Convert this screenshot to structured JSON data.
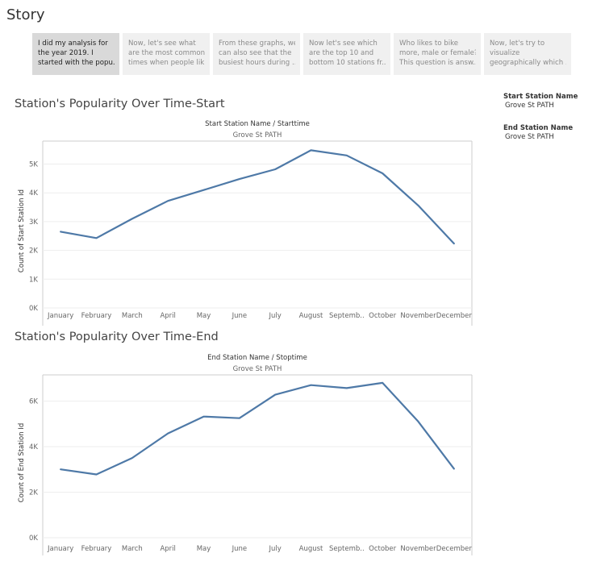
{
  "story": {
    "title": "Story",
    "points": [
      {
        "lines": [
          "I did my analysis for",
          "the year 2019. I",
          "started with the popu.."
        ],
        "active": true
      },
      {
        "lines": [
          "Now, let's see what",
          "are the most common",
          "times when people lik.."
        ],
        "active": false
      },
      {
        "lines": [
          "From these graphs, we",
          "can also see that the",
          "busiest hours during .."
        ],
        "active": false
      },
      {
        "lines": [
          "Now let's see which",
          "are the top 10 and",
          "bottom 10 stations fr.."
        ],
        "active": false
      },
      {
        "lines": [
          "Who likes to bike",
          "more, male or female?",
          "This question is answ.."
        ],
        "active": false
      },
      {
        "lines": [
          "Now, let's try to",
          "visualize",
          "geographically which .."
        ],
        "active": false
      }
    ]
  },
  "filters": [
    {
      "label": "Start Station Name",
      "value": "Grove St PATH"
    },
    {
      "label": "End Station Name",
      "value": "Grove St PATH"
    }
  ],
  "colors": {
    "line": "#4e79a7",
    "grid": "#eeeeee",
    "axis": "#cccccc",
    "text": "#666666"
  },
  "chart_data": [
    {
      "type": "line",
      "title": "Station's Popularity Over Time-Start",
      "header": "Start Station Name / Starttime",
      "subheader": "Grove St PATH",
      "ylabel": "Count of Start Station Id",
      "categories": [
        "January",
        "February",
        "March",
        "April",
        "May",
        "June",
        "July",
        "August",
        "Septemb..",
        "October",
        "November",
        "December"
      ],
      "values": [
        2650,
        2430,
        3100,
        3720,
        4100,
        4480,
        4820,
        5480,
        5300,
        4680,
        3560,
        2240
      ],
      "yticks": [
        0,
        1000,
        2000,
        3000,
        4000,
        5000
      ],
      "ytick_labels": [
        "0K",
        "1K",
        "2K",
        "3K",
        "4K",
        "5K"
      ],
      "ylim": [
        0,
        5800
      ],
      "grid": true
    },
    {
      "type": "line",
      "title": "Station's Popularity Over Time-End",
      "header": "End Station Name / Stoptime",
      "subheader": "Grove St PATH",
      "ylabel": "Count of End Station Id",
      "categories": [
        "January",
        "February",
        "March",
        "April",
        "May",
        "June",
        "July",
        "August",
        "Septemb..",
        "October",
        "November",
        "December"
      ],
      "values": [
        3000,
        2780,
        3500,
        4580,
        5320,
        5250,
        6280,
        6700,
        6570,
        6800,
        5100,
        3030
      ],
      "yticks": [
        0,
        2000,
        4000,
        6000
      ],
      "ytick_labels": [
        "0K",
        "2K",
        "4K",
        "6K"
      ],
      "ylim": [
        0,
        7150
      ],
      "grid": true
    }
  ]
}
